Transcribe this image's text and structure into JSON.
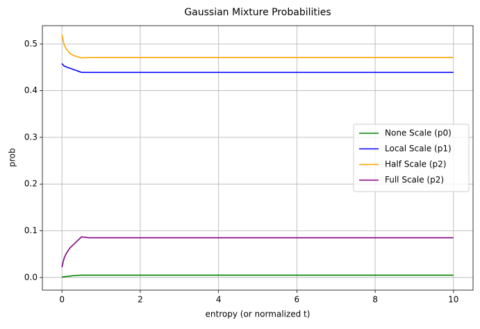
{
  "chart_data": {
    "type": "line",
    "title": "Gaussian Mixture Probabilities",
    "x_label": "entropy (or normalized t)",
    "y_label": "prob",
    "x": [
      0,
      0.05,
      0.1,
      0.2,
      0.3,
      0.5,
      0.7,
      1,
      2,
      4,
      6,
      8,
      10
    ],
    "series": [
      {
        "name": "None Scale (p0)",
        "color": "green",
        "values": [
          0.001,
          0.0015,
          0.002,
          0.003,
          0.004,
          0.005,
          0.005,
          0.005,
          0.005,
          0.005,
          0.005,
          0.005,
          0.005
        ]
      },
      {
        "name": "Local Scale (p1)",
        "color": "blue",
        "values": [
          0.458,
          0.453,
          0.451,
          0.448,
          0.445,
          0.439,
          0.439,
          0.439,
          0.439,
          0.439,
          0.439,
          0.439,
          0.439
        ]
      },
      {
        "name": "Half Scale (p2)",
        "color": "orange",
        "values": [
          0.52,
          0.5,
          0.49,
          0.48,
          0.475,
          0.47,
          0.471,
          0.471,
          0.471,
          0.471,
          0.471,
          0.471,
          0.471
        ]
      },
      {
        "name": "Full Scale (p2)",
        "color": "purple",
        "values": [
          0.022,
          0.04,
          0.05,
          0.063,
          0.071,
          0.087,
          0.085,
          0.085,
          0.085,
          0.085,
          0.085,
          0.085,
          0.085
        ]
      }
    ],
    "xlim": [
      -0.5,
      10.5
    ],
    "ylim": [
      -0.027,
      0.539
    ],
    "xticks": [
      0,
      2,
      4,
      6,
      8,
      10
    ],
    "yticks": [
      {
        "value": 0,
        "label": "0.0"
      },
      0.1,
      0.2,
      0.3,
      0.4,
      0.5
    ],
    "grid": true,
    "legend": "center right"
  }
}
